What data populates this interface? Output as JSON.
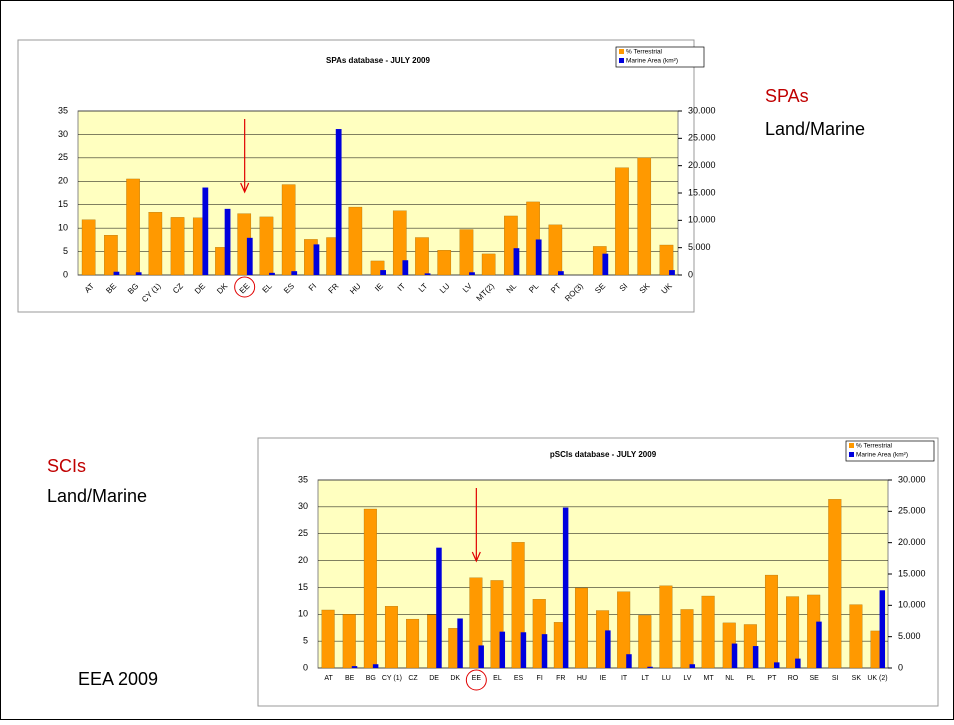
{
  "slide": {
    "label1": "SPAs",
    "label1_sub": "Land/Marine",
    "label2": "SCIs",
    "label2_sub": "Land/Marine",
    "source": "EEA 2009"
  },
  "chart_data": [
    {
      "type": "bar",
      "title": "SPAs database - JULY 2009",
      "categories": [
        "AT",
        "BE",
        "BG",
        "CY (1)",
        "CZ",
        "DE",
        "DK",
        "EE",
        "EL",
        "ES",
        "FI",
        "FR",
        "HU",
        "IE",
        "IT",
        "LT",
        "LU",
        "LV",
        "MT(2)",
        "NL",
        "PL",
        "PT",
        "RO(3)",
        "SE",
        "SI",
        "SK",
        "UK"
      ],
      "series": [
        {
          "name": "% Terrestrial",
          "color": "#ff9900",
          "values": [
            11.8,
            8.5,
            20.5,
            13.4,
            12.3,
            12.2,
            5.9,
            13.1,
            12.4,
            19.3,
            7.6,
            8.0,
            14.5,
            3.0,
            13.7,
            8.0,
            5.3,
            9.7,
            4.5,
            12.6,
            15.6,
            10.7,
            0,
            6.1,
            22.9,
            25.0,
            6.4
          ]
        },
        {
          "name": "Marine Area (km²)",
          "color": "#0000dd",
          "axis": "y2",
          "values": [
            0,
            600,
            500,
            0,
            0,
            16000,
            12100,
            6800,
            400,
            700,
            5600,
            26700,
            0,
            900,
            2700,
            300,
            0,
            500,
            0,
            4900,
            6500,
            700,
            0,
            3900,
            0,
            0,
            900
          ]
        }
      ],
      "ylim": [
        0,
        35
      ],
      "yticks": [
        0,
        5,
        10,
        15,
        20,
        25,
        30,
        35
      ],
      "y2lim": [
        0,
        30000
      ],
      "y2ticks": [
        0,
        {
          "value": 5000,
          "label": "5.000"
        },
        {
          "value": 10000,
          "label": "10.000"
        },
        {
          "value": 15000,
          "label": "15.000"
        },
        {
          "value": 20000,
          "label": "20.000"
        },
        {
          "value": 25000,
          "label": "25.000"
        },
        {
          "value": 30000,
          "label": "30.000"
        }
      ],
      "grid": true,
      "legend": "top-right"
    },
    {
      "type": "bar",
      "title": "pSCIs database - JULY 2009",
      "categories": [
        "AT",
        "BE",
        "BG",
        "CY (1)",
        "CZ",
        "DE",
        "DK",
        "EE",
        "EL",
        "ES",
        "FI",
        "FR",
        "HU",
        "IE",
        "IT",
        "LT",
        "LU",
        "LV",
        "MT",
        "NL",
        "PL",
        "PT",
        "RO",
        "SE",
        "SI",
        "SK",
        "UK (2)"
      ],
      "series": [
        {
          "name": "% Terrestrial",
          "color": "#ff9900",
          "values": [
            10.8,
            10.0,
            29.6,
            11.5,
            9.1,
            9.9,
            7.4,
            16.8,
            16.3,
            23.4,
            12.8,
            8.5,
            14.9,
            10.7,
            14.2,
            9.8,
            15.3,
            10.9,
            13.4,
            8.4,
            8.1,
            17.3,
            13.3,
            13.6,
            31.4,
            11.8,
            6.9
          ]
        },
        {
          "name": "Marine Area (km²)",
          "color": "#0000dd",
          "axis": "y2",
          "values": [
            0,
            300,
            600,
            0,
            0,
            19200,
            7900,
            3600,
            5800,
            5700,
            5400,
            25600,
            0,
            6000,
            2200,
            200,
            0,
            600,
            0,
            3900,
            3500,
            900,
            1500,
            7400,
            0,
            0,
            12400
          ]
        }
      ],
      "ylim": [
        0,
        35
      ],
      "yticks": [
        0,
        5,
        10,
        15,
        20,
        25,
        30,
        35
      ],
      "y2lim": [
        0,
        30000
      ],
      "y2ticks": [
        0,
        {
          "value": 5000,
          "label": "5.000"
        },
        {
          "value": 10000,
          "label": "10.000"
        },
        {
          "value": 15000,
          "label": "15.000"
        },
        {
          "value": 20000,
          "label": "20.000"
        },
        {
          "value": 25000,
          "label": "25.000"
        },
        {
          "value": 30000,
          "label": "30.000"
        }
      ],
      "grid": true,
      "legend": "top-right"
    }
  ]
}
